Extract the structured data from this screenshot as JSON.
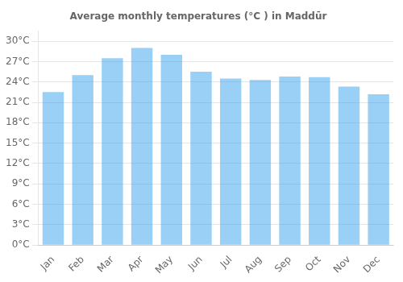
{
  "chart_data": {
    "type": "bar",
    "title": "Average monthly temperatures (°C ) in Maddūr",
    "categories": [
      "Jan",
      "Feb",
      "Mar",
      "Apr",
      "May",
      "Jun",
      "Jul",
      "Aug",
      "Sep",
      "Oct",
      "Nov",
      "Dec"
    ],
    "values": [
      22.5,
      25.0,
      27.5,
      29.0,
      28.0,
      25.5,
      24.5,
      24.3,
      24.8,
      24.7,
      23.3,
      22.2
    ],
    "ylim": [
      0,
      31.5
    ],
    "yticks": [
      {
        "value": 0,
        "label": "0°C"
      },
      {
        "value": 3,
        "label": "3°C"
      },
      {
        "value": 6,
        "label": "6°C"
      },
      {
        "value": 9,
        "label": "9°C"
      },
      {
        "value": 12,
        "label": "12°C"
      },
      {
        "value": 15,
        "label": "15°C"
      },
      {
        "value": 18,
        "label": "18°C"
      },
      {
        "value": 21,
        "label": "21°C"
      },
      {
        "value": 24,
        "label": "24°C"
      },
      {
        "value": 27,
        "label": "27°C"
      },
      {
        "value": 30,
        "label": "30°C"
      }
    ],
    "grid": true
  }
}
